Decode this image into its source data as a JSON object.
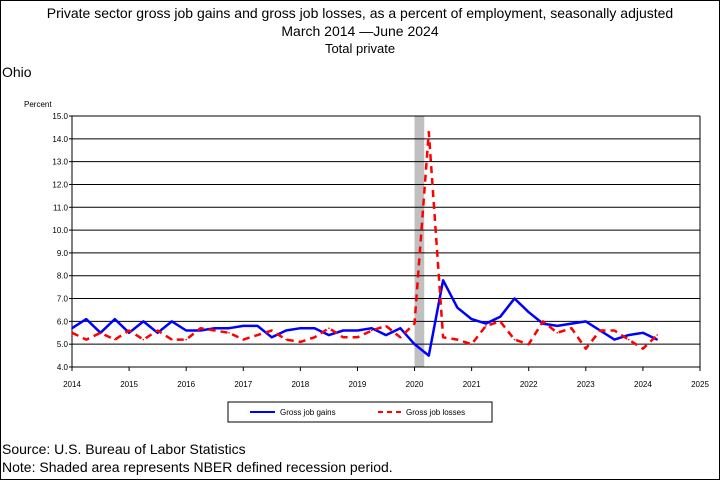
{
  "header": {
    "title": "Private sector gross job gains and gross job losses, as a percent of employment, seasonally adjusted",
    "subtitle": "March 2014 —June 2024",
    "series_label": "Total private",
    "state": "Ohio"
  },
  "footer": {
    "source": "Source: U.S. Bureau of Labor Statistics",
    "note": "Note: Shaded area represents NBER defined recession period."
  },
  "chart_data": {
    "type": "line",
    "ylabel": "Percent",
    "ylim": [
      4.0,
      15.0
    ],
    "yticks": [
      "4.0",
      "5.0",
      "6.0",
      "7.0",
      "8.0",
      "9.0",
      "10.0",
      "11.0",
      "12.0",
      "13.0",
      "14.0",
      "15.0"
    ],
    "xlim": [
      2014,
      2025
    ],
    "xticks": [
      "2014",
      "2015",
      "2016",
      "2017",
      "2018",
      "2019",
      "2020",
      "2021",
      "2022",
      "2023",
      "2024",
      "2025"
    ],
    "grid": "horizontal",
    "recession": {
      "start": 2020.0,
      "end": 2020.17
    },
    "legend_placement": "bottom-center",
    "series": [
      {
        "name": "Gross job gains",
        "color": "#0000ff",
        "style": "solid",
        "x": [
          2014.0,
          2014.25,
          2014.5,
          2014.75,
          2015.0,
          2015.25,
          2015.5,
          2015.75,
          2016.0,
          2016.25,
          2016.5,
          2016.75,
          2017.0,
          2017.25,
          2017.5,
          2017.75,
          2018.0,
          2018.25,
          2018.5,
          2018.75,
          2019.0,
          2019.25,
          2019.5,
          2019.75,
          2020.0,
          2020.25,
          2020.5,
          2020.75,
          2021.0,
          2021.25,
          2021.5,
          2021.75,
          2022.0,
          2022.25,
          2022.5,
          2022.75,
          2023.0,
          2023.25,
          2023.5,
          2023.75,
          2024.0,
          2024.25
        ],
        "values": [
          5.7,
          6.1,
          5.5,
          6.1,
          5.5,
          6.0,
          5.5,
          6.0,
          5.6,
          5.6,
          5.7,
          5.7,
          5.8,
          5.8,
          5.3,
          5.6,
          5.7,
          5.7,
          5.4,
          5.6,
          5.6,
          5.7,
          5.4,
          5.7,
          5.0,
          4.5,
          7.8,
          6.6,
          6.1,
          5.9,
          6.2,
          7.0,
          6.4,
          5.9,
          5.8,
          5.9,
          6.0,
          5.6,
          5.2,
          5.4,
          5.5,
          5.2
        ]
      },
      {
        "name": "Gross job losses",
        "color": "#ff0000",
        "style": "dashed",
        "x": [
          2014.0,
          2014.25,
          2014.5,
          2014.75,
          2015.0,
          2015.25,
          2015.5,
          2015.75,
          2016.0,
          2016.25,
          2016.5,
          2016.75,
          2017.0,
          2017.25,
          2017.5,
          2017.75,
          2018.0,
          2018.25,
          2018.5,
          2018.75,
          2019.0,
          2019.25,
          2019.5,
          2019.75,
          2020.0,
          2020.25,
          2020.5,
          2020.75,
          2021.0,
          2021.25,
          2021.5,
          2021.75,
          2022.0,
          2022.25,
          2022.5,
          2022.75,
          2023.0,
          2023.25,
          2023.5,
          2023.75,
          2024.0,
          2024.25
        ],
        "values": [
          5.5,
          5.2,
          5.5,
          5.2,
          5.6,
          5.2,
          5.6,
          5.2,
          5.2,
          5.7,
          5.6,
          5.5,
          5.2,
          5.4,
          5.6,
          5.2,
          5.1,
          5.3,
          5.7,
          5.3,
          5.3,
          5.6,
          5.8,
          5.3,
          5.9,
          14.3,
          5.3,
          5.2,
          5.0,
          5.8,
          6.0,
          5.2,
          5.0,
          6.0,
          5.5,
          5.7,
          4.8,
          5.6,
          5.6,
          5.2,
          4.8,
          5.4
        ]
      }
    ]
  }
}
